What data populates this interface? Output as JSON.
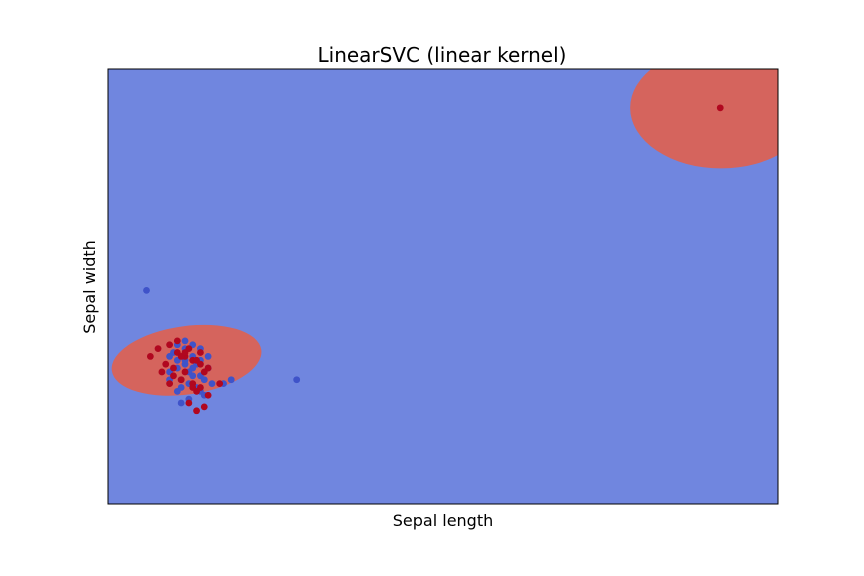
{
  "chart_data": {
    "type": "scatter",
    "title": "LinearSVC (linear kernel)",
    "xlabel": "Sepal length",
    "ylabel": "Sepal width",
    "xlim": [
      -1.4,
      7.3
    ],
    "ylim": [
      -1.8,
      3.8
    ],
    "xticks": [],
    "yticks": [],
    "grid": false,
    "colors": {
      "background_region": "#7086df",
      "decision_region": "#d5645d",
      "class_0": "#3f53c9",
      "class_1": "#b1071f",
      "spine": "#000000"
    },
    "decision_regions": [
      {
        "class": 1,
        "shape": "ellipse",
        "center": [
          -0.38,
          0.05
        ],
        "radii": [
          0.98,
          0.44
        ],
        "rotation_deg": -8
      },
      {
        "class": 1,
        "shape": "ellipse",
        "center": [
          6.56,
          3.3
        ],
        "radii": [
          1.18,
          0.78
        ],
        "rotation_deg": 0
      }
    ],
    "series": [
      {
        "class": 0,
        "x": [
          -0.5,
          -0.6,
          -0.4,
          -0.3,
          -0.2,
          -0.5,
          -0.4,
          -0.3,
          -0.1,
          -0.6,
          -0.45,
          -0.35,
          -0.2,
          -0.15,
          -0.5,
          -0.25,
          -0.3,
          -0.4,
          -0.55,
          -0.1,
          -0.2,
          -0.35,
          -0.45,
          -0.15,
          -0.3,
          -0.05,
          0.1,
          -0.5,
          -0.4,
          -0.25,
          -0.6,
          -0.35,
          -0.2,
          -0.45,
          0.2,
          -0.9,
          1.05
        ],
        "y": [
          0.25,
          0.1,
          0.2,
          0.25,
          0.2,
          -0.05,
          0.0,
          0.1,
          -0.05,
          -0.1,
          -0.2,
          -0.25,
          -0.15,
          -0.2,
          -0.35,
          -0.3,
          -0.05,
          0.05,
          0.15,
          0.1,
          -0.35,
          -0.45,
          -0.5,
          -0.4,
          -0.15,
          -0.25,
          -0.25,
          0.05,
          0.3,
          0.0,
          -0.2,
          -0.1,
          0.05,
          -0.3,
          -0.2,
          0.95,
          -0.2
        ]
      },
      {
        "class": 1,
        "x": [
          -0.85,
          -0.75,
          -0.6,
          -0.5,
          -0.4,
          -0.3,
          -0.2,
          -0.1,
          0.05,
          -0.7,
          -0.55,
          -0.45,
          -0.35,
          -0.25,
          -0.15,
          -0.6,
          -0.45,
          -0.3,
          -0.2,
          -0.65,
          -0.5,
          -0.4,
          -0.25,
          -0.1,
          -0.35,
          -0.15,
          -0.55,
          -0.4,
          -0.2,
          -0.3,
          -0.25
        ],
        "y": [
          0.1,
          0.2,
          0.25,
          0.15,
          0.1,
          0.05,
          0.15,
          -0.05,
          -0.25,
          -0.1,
          -0.05,
          0.1,
          0.2,
          0.05,
          -0.1,
          -0.25,
          -0.2,
          -0.25,
          -0.3,
          0.0,
          0.3,
          -0.1,
          -0.35,
          -0.4,
          -0.5,
          -0.55,
          -0.15,
          0.15,
          0.0,
          -0.3,
          -0.6
        ]
      },
      {
        "class": 1,
        "x": [
          6.55
        ],
        "y": [
          3.3
        ]
      }
    ]
  }
}
